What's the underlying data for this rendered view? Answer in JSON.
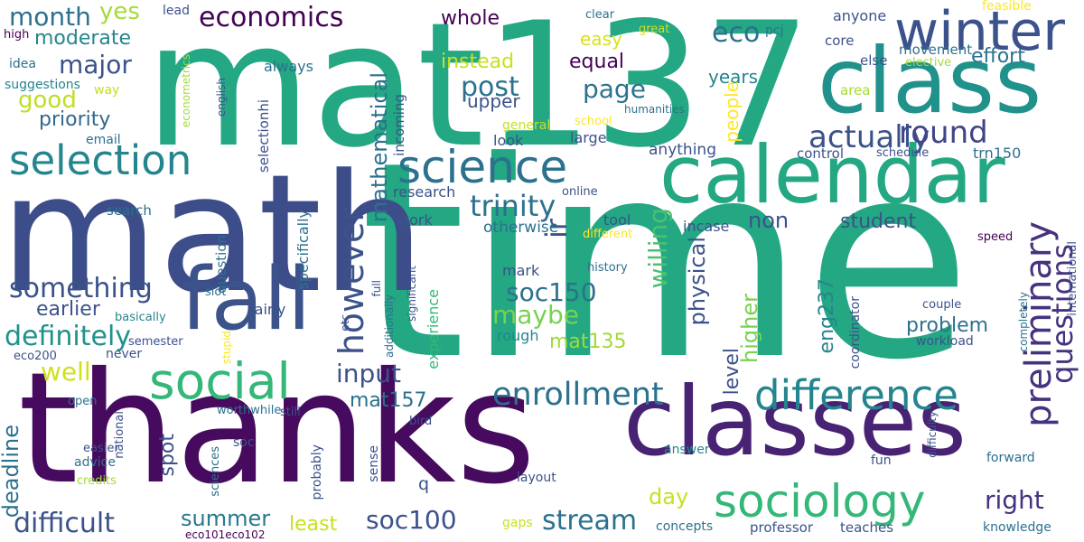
{
  "wordcloud": {
    "background": "#ffffff",
    "words": [
      {
        "text": "time",
        "color": "#23a883"
      },
      {
        "text": "mat137",
        "color": "#23a883"
      },
      {
        "text": "math",
        "color": "#3d4d8a"
      },
      {
        "text": "thanks",
        "color": "#460b5e"
      },
      {
        "text": "classes",
        "color": "#482374"
      },
      {
        "text": "calendar",
        "color": "#23a883"
      },
      {
        "text": "class",
        "color": "#21918c"
      },
      {
        "text": "fall",
        "color": "#3b528b"
      },
      {
        "text": "winter",
        "color": "#3b528b"
      },
      {
        "text": "science",
        "color": "#2c718e"
      },
      {
        "text": "social",
        "color": "#35b779"
      },
      {
        "text": "sociology",
        "color": "#35b779"
      },
      {
        "text": "selection",
        "color": "#25858e"
      },
      {
        "text": "difference",
        "color": "#25858e"
      },
      {
        "text": "enrollment",
        "color": "#2c718e"
      },
      {
        "text": "economics",
        "color": "#440154"
      },
      {
        "text": "actually",
        "color": "#3b528b"
      },
      {
        "text": "round",
        "color": "#414487"
      },
      {
        "text": "trinity",
        "color": "#2c718e"
      },
      {
        "text": "preliminary",
        "color": "#46327e"
      },
      {
        "text": "questions",
        "color": "#46327e"
      },
      {
        "text": "however",
        "color": "#3b528b"
      },
      {
        "text": "something",
        "color": "#3b528b"
      },
      {
        "text": "definitely",
        "color": "#21918c"
      },
      {
        "text": "difficult",
        "color": "#3b528b"
      },
      {
        "text": "month",
        "color": "#2c718e"
      },
      {
        "text": "yes",
        "color": "#a5db36"
      },
      {
        "text": "major",
        "color": "#3b528b"
      },
      {
        "text": "good",
        "color": "#bddf26"
      },
      {
        "text": "moderate",
        "color": "#25858e"
      },
      {
        "text": "priority",
        "color": "#31688e"
      },
      {
        "text": "eco",
        "color": "#2c718e"
      },
      {
        "text": "post",
        "color": "#2c718e"
      },
      {
        "text": "page",
        "color": "#2c718e"
      },
      {
        "text": "whole",
        "color": "#440154"
      },
      {
        "text": "instead",
        "color": "#c8e020"
      },
      {
        "text": "easy",
        "color": "#d8e219"
      },
      {
        "text": "equal",
        "color": "#440154"
      },
      {
        "text": "upper",
        "color": "#3b528b"
      },
      {
        "text": "years",
        "color": "#25858e"
      },
      {
        "text": "effort",
        "color": "#2c718e"
      },
      {
        "text": "soc150",
        "color": "#2c718e"
      },
      {
        "text": "maybe",
        "color": "#7ad151"
      },
      {
        "text": "mat135",
        "color": "#a0da39"
      },
      {
        "text": "willing",
        "color": "#4ac16d"
      },
      {
        "text": "input",
        "color": "#3b528b"
      },
      {
        "text": "well",
        "color": "#d0e11c"
      },
      {
        "text": "mat157",
        "color": "#2c718e"
      },
      {
        "text": "earlier",
        "color": "#3b528b"
      },
      {
        "text": "soc100",
        "color": "#3b528b"
      },
      {
        "text": "stream",
        "color": "#2c718e"
      },
      {
        "text": "summer",
        "color": "#2a788e"
      },
      {
        "text": "least",
        "color": "#c8e020"
      },
      {
        "text": "day",
        "color": "#c8e020"
      },
      {
        "text": "right",
        "color": "#46327e"
      },
      {
        "text": "student",
        "color": "#3b528b"
      },
      {
        "text": "problem",
        "color": "#2c718e"
      },
      {
        "text": "non",
        "color": "#3b528b"
      },
      {
        "text": "ir",
        "color": "#3b528b"
      },
      {
        "text": "physical",
        "color": "#3b528b"
      },
      {
        "text": "higher",
        "color": "#7ad151"
      },
      {
        "text": "level",
        "color": "#3b528b"
      },
      {
        "text": "people",
        "color": "#fde725"
      },
      {
        "text": "eng237",
        "color": "#25858e"
      },
      {
        "text": "spot",
        "color": "#3b528b"
      },
      {
        "text": "deadline",
        "color": "#2c718e"
      },
      {
        "text": "mathematical",
        "color": "#2c718e"
      },
      {
        "text": "research",
        "color": "#3b528b"
      },
      {
        "text": "otherwise",
        "color": "#2c718e"
      },
      {
        "text": "tool",
        "color": "#3b528b"
      },
      {
        "text": "incase",
        "color": "#3b528b"
      },
      {
        "text": "work",
        "color": "#3b528b"
      },
      {
        "text": "mark",
        "color": "#3b528b"
      },
      {
        "text": "rough",
        "color": "#25858e"
      },
      {
        "text": "experience",
        "color": "#35b779"
      },
      {
        "text": "fairly",
        "color": "#3b528b"
      },
      {
        "text": "specifically",
        "color": "#2c718e"
      },
      {
        "text": "selectionhi",
        "color": "#3b528b"
      },
      {
        "text": "question",
        "color": "#2c718e"
      },
      {
        "text": "search",
        "color": "#2c718e"
      },
      {
        "text": "always",
        "color": "#2c718e"
      },
      {
        "text": "incoming",
        "color": "#3b528b"
      },
      {
        "text": "look",
        "color": "#3b528b"
      },
      {
        "text": "large",
        "color": "#3b528b"
      },
      {
        "text": "anything",
        "color": "#3b528b"
      },
      {
        "text": "control",
        "color": "#3b528b"
      },
      {
        "text": "schedule",
        "color": "#3b528b"
      },
      {
        "text": "trn150",
        "color": "#2c718e"
      },
      {
        "text": "area",
        "color": "#a5db36"
      },
      {
        "text": "movement",
        "color": "#2c718e"
      },
      {
        "text": "else",
        "color": "#3b528b"
      },
      {
        "text": "core",
        "color": "#3b528b"
      },
      {
        "text": "anyone",
        "color": "#3b528b"
      },
      {
        "text": "feasible",
        "color": "#fde725"
      },
      {
        "text": "elective",
        "color": "#a5db36"
      },
      {
        "text": "clear",
        "color": "#2c718e"
      },
      {
        "text": "great",
        "color": "#c8e020"
      },
      {
        "text": "pcj",
        "color": "#2c718e"
      },
      {
        "text": "lead",
        "color": "#3b528b"
      },
      {
        "text": "high",
        "color": "#440154"
      },
      {
        "text": "idea",
        "color": "#2c718e"
      },
      {
        "text": "suggestions",
        "color": "#25858e"
      },
      {
        "text": "way",
        "color": "#c8e020"
      },
      {
        "text": "email",
        "color": "#2c718e"
      },
      {
        "text": "econometrics",
        "color": "#a5db36"
      },
      {
        "text": "english",
        "color": "#3b528b"
      },
      {
        "text": "humanities",
        "color": "#2c718e"
      },
      {
        "text": "general",
        "color": "#c8e020"
      },
      {
        "text": "school",
        "color": "#fde725"
      },
      {
        "text": "online",
        "color": "#3b528b"
      },
      {
        "text": "different",
        "color": "#fde725"
      },
      {
        "text": "history",
        "color": "#2c718e"
      },
      {
        "text": "significant",
        "color": "#3b528b"
      },
      {
        "text": "full",
        "color": "#3b528b"
      },
      {
        "text": "additionally",
        "color": "#2c718e"
      },
      {
        "text": "etc",
        "color": "#3b528b"
      },
      {
        "text": "slot",
        "color": "#2c718e"
      },
      {
        "text": "basically",
        "color": "#25858e"
      },
      {
        "text": "eco200",
        "color": "#3b528b"
      },
      {
        "text": "never",
        "color": "#3b528b"
      },
      {
        "text": "semester",
        "color": "#3b528b"
      },
      {
        "text": "stupid",
        "color": "#fde725"
      },
      {
        "text": "national",
        "color": "#3b528b"
      },
      {
        "text": "open",
        "color": "#2c718e"
      },
      {
        "text": "worthwhile",
        "color": "#2c718e"
      },
      {
        "text": "still",
        "color": "#3b528b"
      },
      {
        "text": "bird",
        "color": "#3b528b"
      },
      {
        "text": "easier",
        "color": "#3b528b"
      },
      {
        "text": "advice",
        "color": "#2c718e"
      },
      {
        "text": "credits",
        "color": "#a5db36"
      },
      {
        "text": "soc",
        "color": "#3b528b"
      },
      {
        "text": "sciences",
        "color": "#2c718e"
      },
      {
        "text": "probably",
        "color": "#3b528b"
      },
      {
        "text": "sense",
        "color": "#3b528b"
      },
      {
        "text": "q",
        "color": "#3b528b"
      },
      {
        "text": "layout",
        "color": "#3b528b"
      },
      {
        "text": "answer",
        "color": "#25858e"
      },
      {
        "text": "gaps",
        "color": "#c8e020"
      },
      {
        "text": "concepts",
        "color": "#2c718e"
      },
      {
        "text": "professor",
        "color": "#3b528b"
      },
      {
        "text": "teaches",
        "color": "#3b528b"
      },
      {
        "text": "knowledge",
        "color": "#2c718e"
      },
      {
        "text": "forward",
        "color": "#2c718e"
      },
      {
        "text": "fun",
        "color": "#3b528b"
      },
      {
        "text": "difficulty",
        "color": "#3b528b"
      },
      {
        "text": "workload",
        "color": "#3b528b"
      },
      {
        "text": "coordinator",
        "color": "#3b528b"
      },
      {
        "text": "couple",
        "color": "#3b528b"
      },
      {
        "text": "completely",
        "color": "#2c718e"
      },
      {
        "text": "international",
        "color": "#3b528b"
      },
      {
        "text": "speed",
        "color": "#440154"
      },
      {
        "text": "eco101eco102",
        "color": "#440154"
      }
    ]
  }
}
